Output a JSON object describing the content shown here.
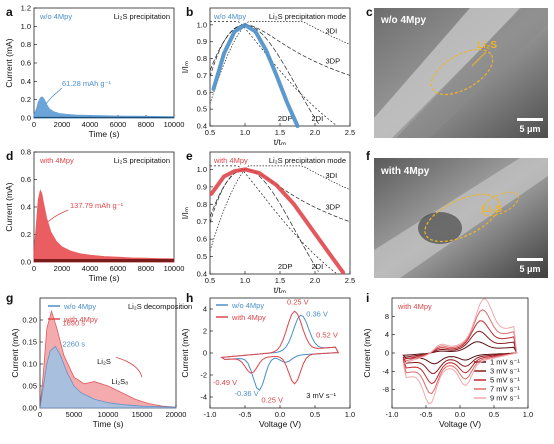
{
  "panel_letters": {
    "a": "a",
    "b": "b",
    "c": "c",
    "d": "d",
    "e": "e",
    "f": "f",
    "g": "g",
    "h": "h",
    "i": "i"
  },
  "colors": {
    "blue": "#4a8fc9",
    "blue_fill": "#5b9bd5",
    "red": "#e0464a",
    "red_fill": "#e84c4f",
    "dark_red": "#7a1c1c",
    "light_blue_fill": "#9cc3e6",
    "pink_fill": "#f2a3a5"
  },
  "images": {
    "c": {
      "label": "w/o 4Mpy",
      "annotation": "Li₂S",
      "scale": "5 μm"
    },
    "f": {
      "label": "with 4Mpy",
      "annotation": "Li₂S",
      "scale": "5 μm"
    }
  },
  "chart_data": [
    {
      "id": "a",
      "type": "area",
      "condition": "w/o 4Mpy",
      "title": "Li₂S precipitation",
      "annotation": "61.28 mAh g⁻¹",
      "xlabel": "Time (s)",
      "ylabel": "Current (mA)",
      "xlim": [
        0,
        10000
      ],
      "ylim": [
        0,
        1.2
      ],
      "xticks": [
        "0",
        "2000",
        "4000",
        "6000",
        "8000",
        "10000"
      ],
      "yticks": [
        "0.0",
        "0.2",
        "0.4",
        "0.6",
        "0.8",
        "1.0",
        "1.2"
      ],
      "x": [
        0,
        150,
        300,
        450,
        600,
        750,
        900,
        1100,
        1400,
        1800,
        2300,
        3000,
        4000,
        5000,
        6000,
        7000,
        8000,
        9000,
        10000
      ],
      "y": [
        0.04,
        0.09,
        0.17,
        0.22,
        0.23,
        0.2,
        0.15,
        0.1,
        0.07,
        0.05,
        0.04,
        0.033,
        0.028,
        0.025,
        0.022,
        0.02,
        0.018,
        0.016,
        0.015
      ]
    },
    {
      "id": "b",
      "type": "line",
      "condition": "w/o 4Mpy",
      "title": "Li₂S precipitation mode",
      "xlabel": "t/tₘ",
      "ylabel": "I/Iₘ",
      "xlim": [
        0.5,
        2.5
      ],
      "ylim": [
        0.4,
        1.1
      ],
      "xticks": [
        "0.5",
        "1.0",
        "1.5",
        "2.0",
        "2.5"
      ],
      "yticks": [
        "0.4",
        "0.5",
        "0.6",
        "0.7",
        "0.8",
        "0.9",
        "1.0"
      ],
      "model_labels": [
        "3DI",
        "3DP",
        "2DP",
        "2DI"
      ],
      "experimental": {
        "x": [
          0.55,
          0.7,
          0.85,
          1.0,
          1.15,
          1.3,
          1.45,
          1.6,
          1.75
        ],
        "y": [
          0.62,
          0.83,
          0.96,
          1.0,
          0.96,
          0.85,
          0.7,
          0.54,
          0.4
        ]
      }
    },
    {
      "id": "d",
      "type": "area",
      "condition": "with 4Mpy",
      "title": "Li₂S precipitation",
      "annotation": "137.79 mAh g⁻¹",
      "xlabel": "Time (s)",
      "ylabel": "Current (mA)",
      "xlim": [
        0,
        10000
      ],
      "ylim": [
        0,
        0.8
      ],
      "xticks": [
        "0",
        "2000",
        "4000",
        "6000",
        "8000",
        "10000"
      ],
      "yticks": [
        "0.0",
        "0.2",
        "0.4",
        "0.6",
        "0.8"
      ],
      "x": [
        0,
        150,
        300,
        450,
        550,
        700,
        900,
        1200,
        1600,
        2000,
        2600,
        3300,
        4000,
        5000,
        6000,
        7000,
        8000,
        9000,
        10000
      ],
      "y": [
        0.08,
        0.25,
        0.45,
        0.52,
        0.5,
        0.42,
        0.32,
        0.22,
        0.15,
        0.11,
        0.08,
        0.06,
        0.05,
        0.04,
        0.035,
        0.03,
        0.028,
        0.025,
        0.023
      ]
    },
    {
      "id": "e",
      "type": "line",
      "condition": "with 4Mpy",
      "title": "Li₂S precipitation mode",
      "xlabel": "t/tₘ",
      "ylabel": "I/Iₘ",
      "xlim": [
        0.5,
        2.5
      ],
      "ylim": [
        0.4,
        1.1
      ],
      "xticks": [
        "0.5",
        "1.0",
        "1.5",
        "2.0",
        "2.5"
      ],
      "yticks": [
        "0.4",
        "0.5",
        "0.6",
        "0.7",
        "0.8",
        "0.9",
        "1.0"
      ],
      "model_labels": [
        "3DI",
        "3DP",
        "2DP",
        "2DI"
      ],
      "experimental": {
        "x": [
          0.52,
          0.7,
          0.85,
          1.0,
          1.2,
          1.45,
          1.7,
          1.95,
          2.2,
          2.4
        ],
        "y": [
          0.86,
          0.96,
          0.99,
          1.0,
          0.98,
          0.91,
          0.8,
          0.66,
          0.52,
          0.41
        ]
      }
    },
    {
      "id": "g",
      "type": "area",
      "title": "Li₂S decomposition",
      "series": [
        {
          "name": "w/o 4Mpy",
          "color": "#9cc3e6"
        },
        {
          "name": "with 4Mpy",
          "color": "#f2a3a5"
        }
      ],
      "annotations": [
        "1690 s",
        "2260 s",
        "Li₂S",
        "Li₂S₈"
      ],
      "xlabel": "Time (s)",
      "ylabel": "Current (mA)",
      "xlim": [
        0,
        20000
      ],
      "ylim": [
        0,
        0.25
      ],
      "xticks": [
        "0",
        "5000",
        "10000",
        "15000",
        "20000"
      ],
      "yticks": [
        "0.00",
        "0.05",
        "0.10",
        "0.15",
        "0.20"
      ],
      "series_a": {
        "x": [
          0,
          500,
          1000,
          1500,
          2260,
          3000,
          4000,
          5000,
          6000,
          8000,
          10000,
          12000,
          15000,
          20000
        ],
        "y": [
          0.0,
          0.05,
          0.1,
          0.13,
          0.14,
          0.12,
          0.08,
          0.05,
          0.035,
          0.02,
          0.012,
          0.008,
          0.004,
          0.002
        ]
      },
      "series_b": {
        "x": [
          0,
          500,
          1000,
          1690,
          2500,
          3500,
          5000,
          6500,
          8000,
          10000,
          12000,
          14000,
          16000,
          18000,
          20000
        ],
        "y": [
          0.0,
          0.08,
          0.18,
          0.22,
          0.18,
          0.12,
          0.07,
          0.055,
          0.06,
          0.05,
          0.035,
          0.02,
          0.01,
          0.004,
          0.002
        ]
      }
    },
    {
      "id": "h",
      "type": "line",
      "series": [
        {
          "name": "w/o 4Mpy",
          "color": "#4a8fc9"
        },
        {
          "name": "with 4Mpy",
          "color": "#e0464a"
        }
      ],
      "annotations": [
        "0.25 V",
        "0.36 V",
        "0.52 V",
        "-0.49 V",
        "-0.36 V",
        "0.25 V",
        "3 mV s⁻¹"
      ],
      "xlabel": "Voltage (V)",
      "ylabel": "Current (mA)",
      "xlim": [
        -1.2,
        1.2
      ],
      "ylim": [
        -5,
        5
      ],
      "xticks": [
        "-1.0",
        "-0.5",
        "0.0",
        "0.5",
        "1.0"
      ],
      "yticks": [
        "-4",
        "-2",
        "0",
        "2",
        "4"
      ]
    },
    {
      "id": "i",
      "type": "line",
      "condition": "with 4Mpy",
      "series": [
        {
          "name": "1 mV s⁻¹",
          "color": "#5a0f12"
        },
        {
          "name": "3 mV s⁻¹",
          "color": "#8b1a1f"
        },
        {
          "name": "5 mV s⁻¹",
          "color": "#c0282e"
        },
        {
          "name": "7 mV s⁻¹",
          "color": "#e06a6d"
        },
        {
          "name": "9 mV s⁻¹",
          "color": "#f0a9ab"
        }
      ],
      "xlabel": "Voltage (V)",
      "ylabel": "Current (mA)",
      "xlim": [
        -1.2,
        1.2
      ],
      "ylim": [
        -12,
        12
      ],
      "xticks": [
        "-1.0",
        "-0.5",
        "0.0",
        "0.5",
        "1.0"
      ],
      "yticks": [
        "-8",
        "-4",
        "0",
        "4",
        "8"
      ]
    }
  ]
}
